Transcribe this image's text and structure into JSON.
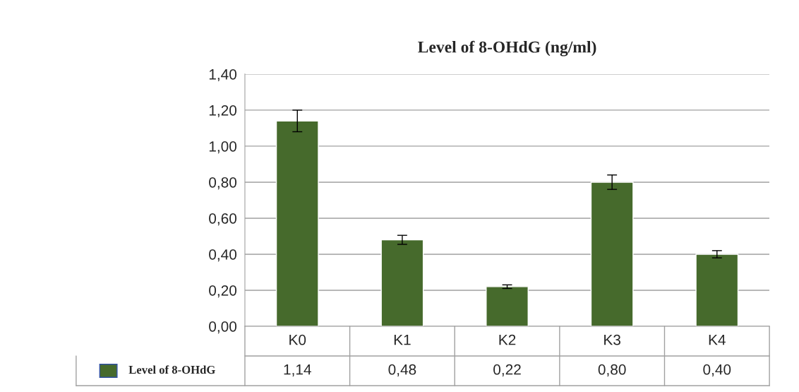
{
  "chart_data": {
    "type": "bar",
    "title": "Level of 8-OHdG (ng/ml)",
    "categories": [
      "K0",
      "K1",
      "K2",
      "K3",
      "K4"
    ],
    "series": [
      {
        "name": "Level of 8-OHdG",
        "color": "#466a2c",
        "values": [
          1.14,
          0.48,
          0.22,
          0.8,
          0.4
        ],
        "errors": [
          0.06,
          0.025,
          0.01,
          0.04,
          0.02
        ],
        "value_labels": [
          "1,14",
          "0,48",
          "0,22",
          "0,80",
          "0,40"
        ]
      }
    ],
    "ylim": [
      0,
      1.4
    ],
    "yticks": [
      {
        "value": 0,
        "label": "0,00"
      },
      {
        "value": 0.2,
        "label": "0,20"
      },
      {
        "value": 0.4,
        "label": "0,40"
      },
      {
        "value": 0.6,
        "label": "0,60"
      },
      {
        "value": 0.8,
        "label": "0,80"
      },
      {
        "value": 1.0,
        "label": "1,00"
      },
      {
        "value": 1.2,
        "label": "1,20"
      },
      {
        "value": 1.4,
        "label": "1,40"
      }
    ],
    "grid": "y",
    "legend": "bottom"
  }
}
